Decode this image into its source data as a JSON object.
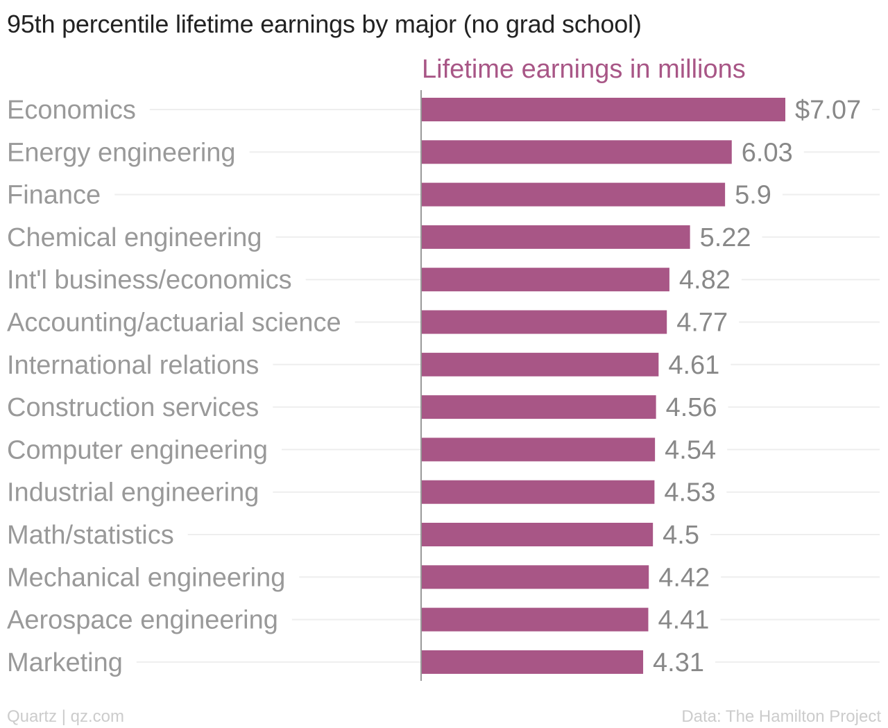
{
  "chart_data": {
    "type": "bar",
    "orientation": "horizontal",
    "title": "95th percentile lifetime earnings by major (no grad school)",
    "series_label": "Lifetime earnings in millions",
    "categories": [
      "Economics",
      "Energy engineering",
      "Finance",
      "Chemical engineering",
      "Int'l business/economics",
      "Accounting/actuarial science",
      "International relations",
      "Construction services",
      "Computer engineering",
      "Industrial engineering",
      "Math/statistics",
      "Mechanical engineering",
      "Aerospace engineering",
      "Marketing"
    ],
    "values": [
      7.07,
      6.03,
      5.9,
      5.22,
      4.82,
      4.77,
      4.61,
      4.56,
      4.54,
      4.53,
      4.5,
      4.42,
      4.41,
      4.31
    ],
    "value_labels": [
      "$7.07",
      "6.03",
      "5.9",
      "5.22",
      "4.82",
      "4.77",
      "4.61",
      "4.56",
      "4.54",
      "4.53",
      "4.5",
      "4.42",
      "4.41",
      "4.31"
    ],
    "xlim": [
      0,
      7.07
    ],
    "grid": true,
    "colors": {
      "bar": "#a85686",
      "series_label": "#a85686",
      "category_label": "#999999",
      "value_label": "#888888",
      "gridline": "#eeeeee",
      "axis": "#999999",
      "title": "#222222",
      "footer": "#cccccc"
    }
  },
  "footer": {
    "left": "Quartz | qz.com",
    "right": "Data: The Hamilton Project"
  }
}
